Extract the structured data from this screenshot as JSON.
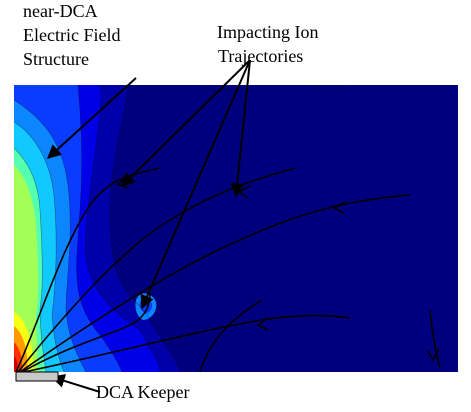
{
  "labels": {
    "field_structure": [
      "near-DCA",
      "Electric Field",
      "Structure"
    ],
    "ion_trajectories": [
      "Impacting Ion",
      "Trajectories"
    ],
    "keeper": "DCA Keeper"
  },
  "colors": {
    "background_field": "#00007e",
    "contour_levels": [
      "#0000a8",
      "#0000e8",
      "#0a3cff",
      "#0c86ff",
      "#11c8ff",
      "#55ffb0",
      "#a2ff55",
      "#f7ff14",
      "#ff9a00",
      "#ff3000",
      "#d40000"
    ],
    "trajectory": "#000000",
    "keeper_fill": "#c8c8c8",
    "annotation": "#000000"
  }
}
